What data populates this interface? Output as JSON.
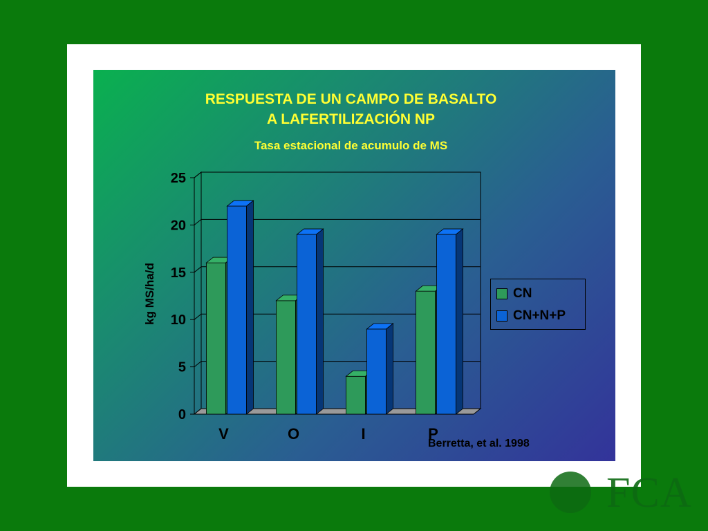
{
  "slide": {
    "logo_text": "FCA",
    "colors": {
      "background": "#0a7a0c",
      "title": "#ffff33"
    }
  },
  "chart_data": {
    "type": "bar",
    "title_line1": "RESPUESTA DE UN CAMPO DE BASALTO",
    "title_line2": "A LAFERTILIZACIÓN NP",
    "subtitle": "Tasa estacional de acumulo de MS",
    "xlabel": "",
    "ylabel": "kg MS/ha/d",
    "ylim": [
      0,
      25
    ],
    "yticks": [
      "0",
      "5",
      "10",
      "15",
      "20",
      "25"
    ],
    "categories": [
      "V",
      "O",
      "I",
      "P"
    ],
    "series": [
      {
        "name": "CN",
        "values": [
          16,
          12,
          4,
          13
        ],
        "color": "#2e9a5a"
      },
      {
        "name": "CN+N+P",
        "values": [
          22,
          19,
          9,
          19
        ],
        "color": "#0b63d6"
      }
    ],
    "grid": true,
    "legend_position": "right",
    "source": "Berretta, et al. 1998"
  }
}
